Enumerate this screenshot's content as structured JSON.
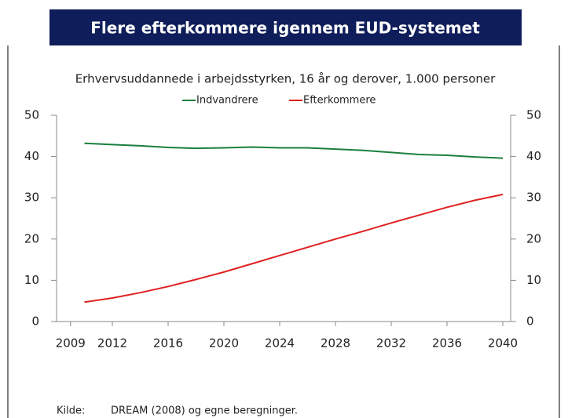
{
  "chart_data": {
    "type": "line",
    "title": "Flere efterkommere igennem EUD-systemet",
    "subtitle": "Erhvervsuddannede i arbejdsstyrken, 16 år og derover, 1.000 personer",
    "x": [
      2010,
      2012,
      2014,
      2016,
      2018,
      2020,
      2022,
      2024,
      2026,
      2028,
      2030,
      2032,
      2034,
      2036,
      2038,
      2040
    ],
    "series": [
      {
        "name": "Indvandrere",
        "color": "#1a7f3c",
        "values": [
          43.2,
          42.9,
          42.6,
          42.2,
          42.0,
          42.1,
          42.3,
          42.1,
          42.1,
          41.8,
          41.5,
          41.0,
          40.5,
          40.3,
          39.9,
          39.6
        ]
      },
      {
        "name": "Efterkommere",
        "color": "#e02020",
        "values": [
          4.7,
          5.7,
          7.0,
          8.5,
          10.2,
          12.0,
          14.0,
          16.0,
          18.0,
          20.0,
          21.9,
          23.9,
          25.8,
          27.7,
          29.4,
          30.8
        ]
      }
    ],
    "xlim": [
      2008,
      2040
    ],
    "xticks": [
      2009,
      2012,
      2016,
      2020,
      2024,
      2028,
      2032,
      2036,
      2040
    ],
    "ylim": [
      0,
      50
    ],
    "yticks": [
      0,
      10,
      20,
      30,
      40,
      50
    ],
    "y2lim": [
      0,
      50
    ],
    "y2ticks": [
      0,
      10,
      20,
      30,
      40,
      50
    ],
    "legend": "top",
    "source_label": "Kilde:",
    "source": "DREAM (2008) og egne beregninger."
  }
}
